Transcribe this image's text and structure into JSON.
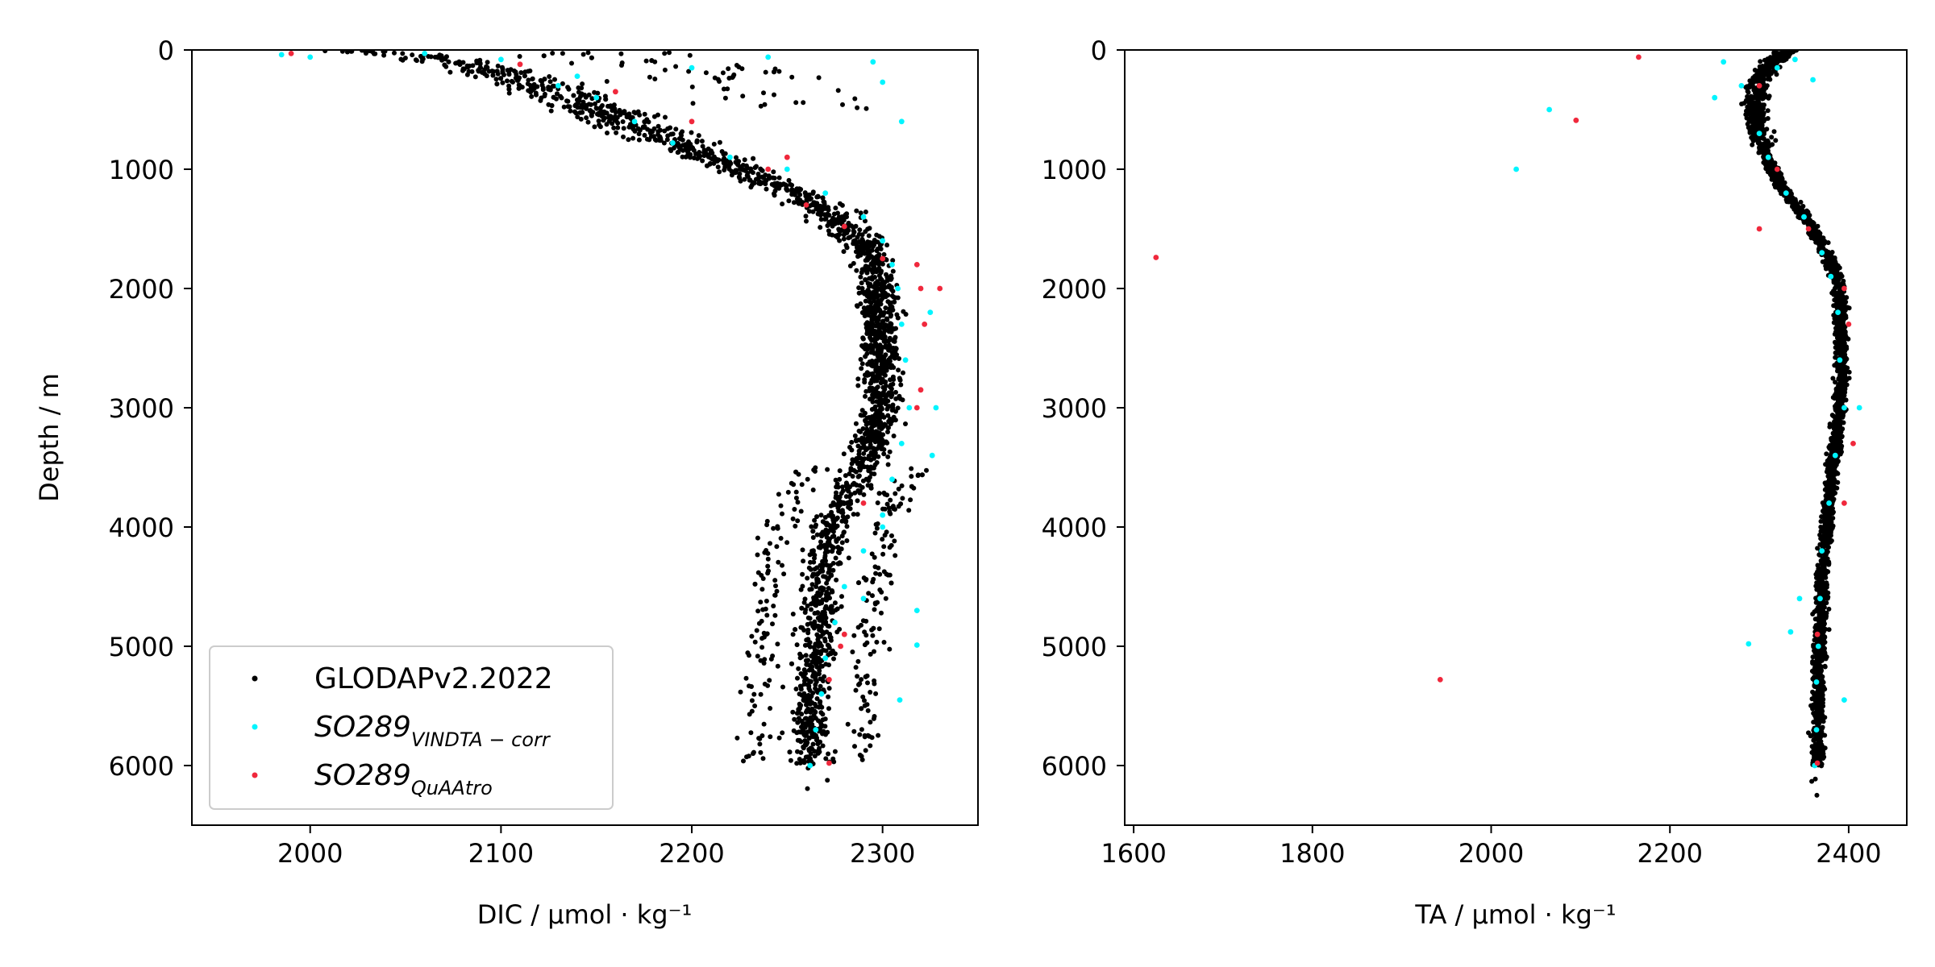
{
  "figure": {
    "colors": {
      "glodap": "#000000",
      "vindta": "#00f5ff",
      "quaatro": "#f0283c"
    }
  },
  "chart_data": [
    {
      "type": "scatter",
      "title": "",
      "xlabel": "DIC / µmol · kg⁻¹",
      "ylabel": "Depth / m",
      "xlim": [
        1938,
        2350
      ],
      "ylim": [
        6500,
        0
      ],
      "y_inverted": true,
      "xticks": [
        2000,
        2100,
        2200,
        2300
      ],
      "yticks": [
        0,
        1000,
        2000,
        3000,
        4000,
        5000,
        6000
      ],
      "legend": {
        "placement": "lower-left",
        "entries": [
          {
            "series": "glodap",
            "label": "GLODAPv2.2022"
          },
          {
            "series": "vindta",
            "label": "SO289",
            "subscript": "VINDTA − corr"
          },
          {
            "series": "quaatro",
            "label": "SO289",
            "subscript": "QuAAtro"
          }
        ]
      },
      "profile_note": "trend of the densest point cloud, DIC (µmol/kg) vs depth (m)",
      "glodap_profile": {
        "depth": [
          0,
          100,
          200,
          300,
          400,
          500,
          600,
          700,
          800,
          900,
          1000,
          1200,
          1400,
          1600,
          1800,
          2000,
          2500,
          3000,
          3500,
          4000,
          4500,
          5000,
          5500,
          6000
        ],
        "dic": [
          2030,
          2075,
          2100,
          2120,
          2135,
          2150,
          2165,
          2180,
          2195,
          2210,
          2225,
          2255,
          2275,
          2290,
          2295,
          2297,
          2298,
          2300,
          2290,
          2272,
          2268,
          2265,
          2263,
          2262
        ]
      },
      "series": [
        {
          "name": "SO289",
          "key": "vindta",
          "points": [
            [
              1985,
              40
            ],
            [
              2000,
              60
            ],
            [
              2060,
              30
            ],
            [
              2100,
              80
            ],
            [
              2130,
              300
            ],
            [
              2150,
              400
            ],
            [
              2170,
              600
            ],
            [
              2190,
              780
            ],
            [
              2220,
              900
            ],
            [
              2250,
              1000
            ],
            [
              2270,
              1200
            ],
            [
              2290,
              1400
            ],
            [
              2300,
              1600
            ],
            [
              2305,
              1800
            ],
            [
              2308,
              2000
            ],
            [
              2310,
              2300
            ],
            [
              2312,
              2600
            ],
            [
              2314,
              3000
            ],
            [
              2310,
              3300
            ],
            [
              2305,
              3600
            ],
            [
              2300,
              3900
            ],
            [
              2290,
              4200
            ],
            [
              2280,
              4500
            ],
            [
              2275,
              4800
            ],
            [
              2270,
              5100
            ],
            [
              2268,
              5400
            ],
            [
              2265,
              5700
            ],
            [
              2262,
              6000
            ],
            [
              2295,
              100
            ],
            [
              2300,
              270
            ],
            [
              2310,
              600
            ],
            [
              2325,
              2200
            ],
            [
              2328,
              3000
            ],
            [
              2326,
              3400
            ],
            [
              2318,
              4700
            ],
            [
              2318,
              4990
            ],
            [
              2309,
              5450
            ],
            [
              2240,
              60
            ],
            [
              2200,
              150
            ],
            [
              2140,
              220
            ],
            [
              2290,
              4600
            ],
            [
              2300,
              4000
            ]
          ]
        },
        {
          "name": "SO289",
          "key": "quaatro",
          "points": [
            [
              1990,
              30
            ],
            [
              2110,
              120
            ],
            [
              2160,
              350
            ],
            [
              2200,
              600
            ],
            [
              2240,
              1000
            ],
            [
              2260,
              1300
            ],
            [
              2280,
              1480
            ],
            [
              2300,
              1750
            ],
            [
              2320,
              2000
            ],
            [
              2322,
              2300
            ],
            [
              2320,
              2850
            ],
            [
              2318,
              3000
            ],
            [
              2290,
              3800
            ],
            [
              2280,
              4900
            ],
            [
              2278,
              5000
            ],
            [
              2272,
              5280
            ],
            [
              2272,
              5980
            ],
            [
              2318,
              1800
            ],
            [
              2330,
              2000
            ],
            [
              2250,
              900
            ]
          ]
        }
      ]
    },
    {
      "type": "scatter",
      "title": "",
      "xlabel": "TA / µmol · kg⁻¹",
      "ylabel": "",
      "xlim": [
        1590,
        2465
      ],
      "ylim": [
        6500,
        0
      ],
      "y_inverted": true,
      "xticks": [
        1600,
        1800,
        2000,
        2200,
        2400
      ],
      "yticks": [
        0,
        1000,
        2000,
        3000,
        4000,
        5000,
        6000
      ],
      "profile_note": "trend of the densest point cloud, TA (µmol/kg) vs depth (m)",
      "glodap_profile": {
        "depth": [
          0,
          100,
          200,
          300,
          400,
          500,
          600,
          700,
          800,
          900,
          1000,
          1200,
          1400,
          1600,
          1800,
          2000,
          2500,
          3000,
          3500,
          4000,
          4500,
          5000,
          5500,
          6000
        ],
        "ta": [
          2330,
          2315,
          2305,
          2298,
          2296,
          2296,
          2297,
          2300,
          2303,
          2308,
          2315,
          2330,
          2350,
          2368,
          2382,
          2390,
          2392,
          2390,
          2382,
          2375,
          2370,
          2368,
          2366,
          2365
        ]
      },
      "series": [
        {
          "name": "SO289",
          "key": "vindta",
          "points": [
            [
              2065,
              500
            ],
            [
              2028,
              1000
            ],
            [
              2288,
              4980
            ],
            [
              2345,
              4600
            ],
            [
              2335,
              4880
            ],
            [
              2250,
              400
            ],
            [
              2260,
              100
            ],
            [
              2280,
              300
            ],
            [
              2300,
              700
            ],
            [
              2310,
              900
            ],
            [
              2330,
              1200
            ],
            [
              2350,
              1400
            ],
            [
              2370,
              1700
            ],
            [
              2380,
              1900
            ],
            [
              2388,
              2200
            ],
            [
              2390,
              2600
            ],
            [
              2395,
              3000
            ],
            [
              2412,
              3000
            ],
            [
              2385,
              3400
            ],
            [
              2378,
              3800
            ],
            [
              2370,
              4200
            ],
            [
              2368,
              4600
            ],
            [
              2366,
              5000
            ],
            [
              2364,
              5300
            ],
            [
              2364,
              5700
            ],
            [
              2362,
              6000
            ],
            [
              2320,
              150
            ],
            [
              2340,
              80
            ],
            [
              2360,
              250
            ],
            [
              2395,
              5450
            ]
          ]
        },
        {
          "name": "SO289",
          "key": "quaatro",
          "points": [
            [
              2165,
              60
            ],
            [
              2095,
              590
            ],
            [
              1625,
              1740
            ],
            [
              1943,
              5280
            ],
            [
              2300,
              1500
            ],
            [
              2320,
              1000
            ],
            [
              2355,
              1500
            ],
            [
              2395,
              2000
            ],
            [
              2400,
              2300
            ],
            [
              2405,
              3300
            ],
            [
              2395,
              3800
            ],
            [
              2365,
              4900
            ],
            [
              2365,
              5980
            ],
            [
              2300,
              300
            ]
          ]
        }
      ]
    }
  ]
}
